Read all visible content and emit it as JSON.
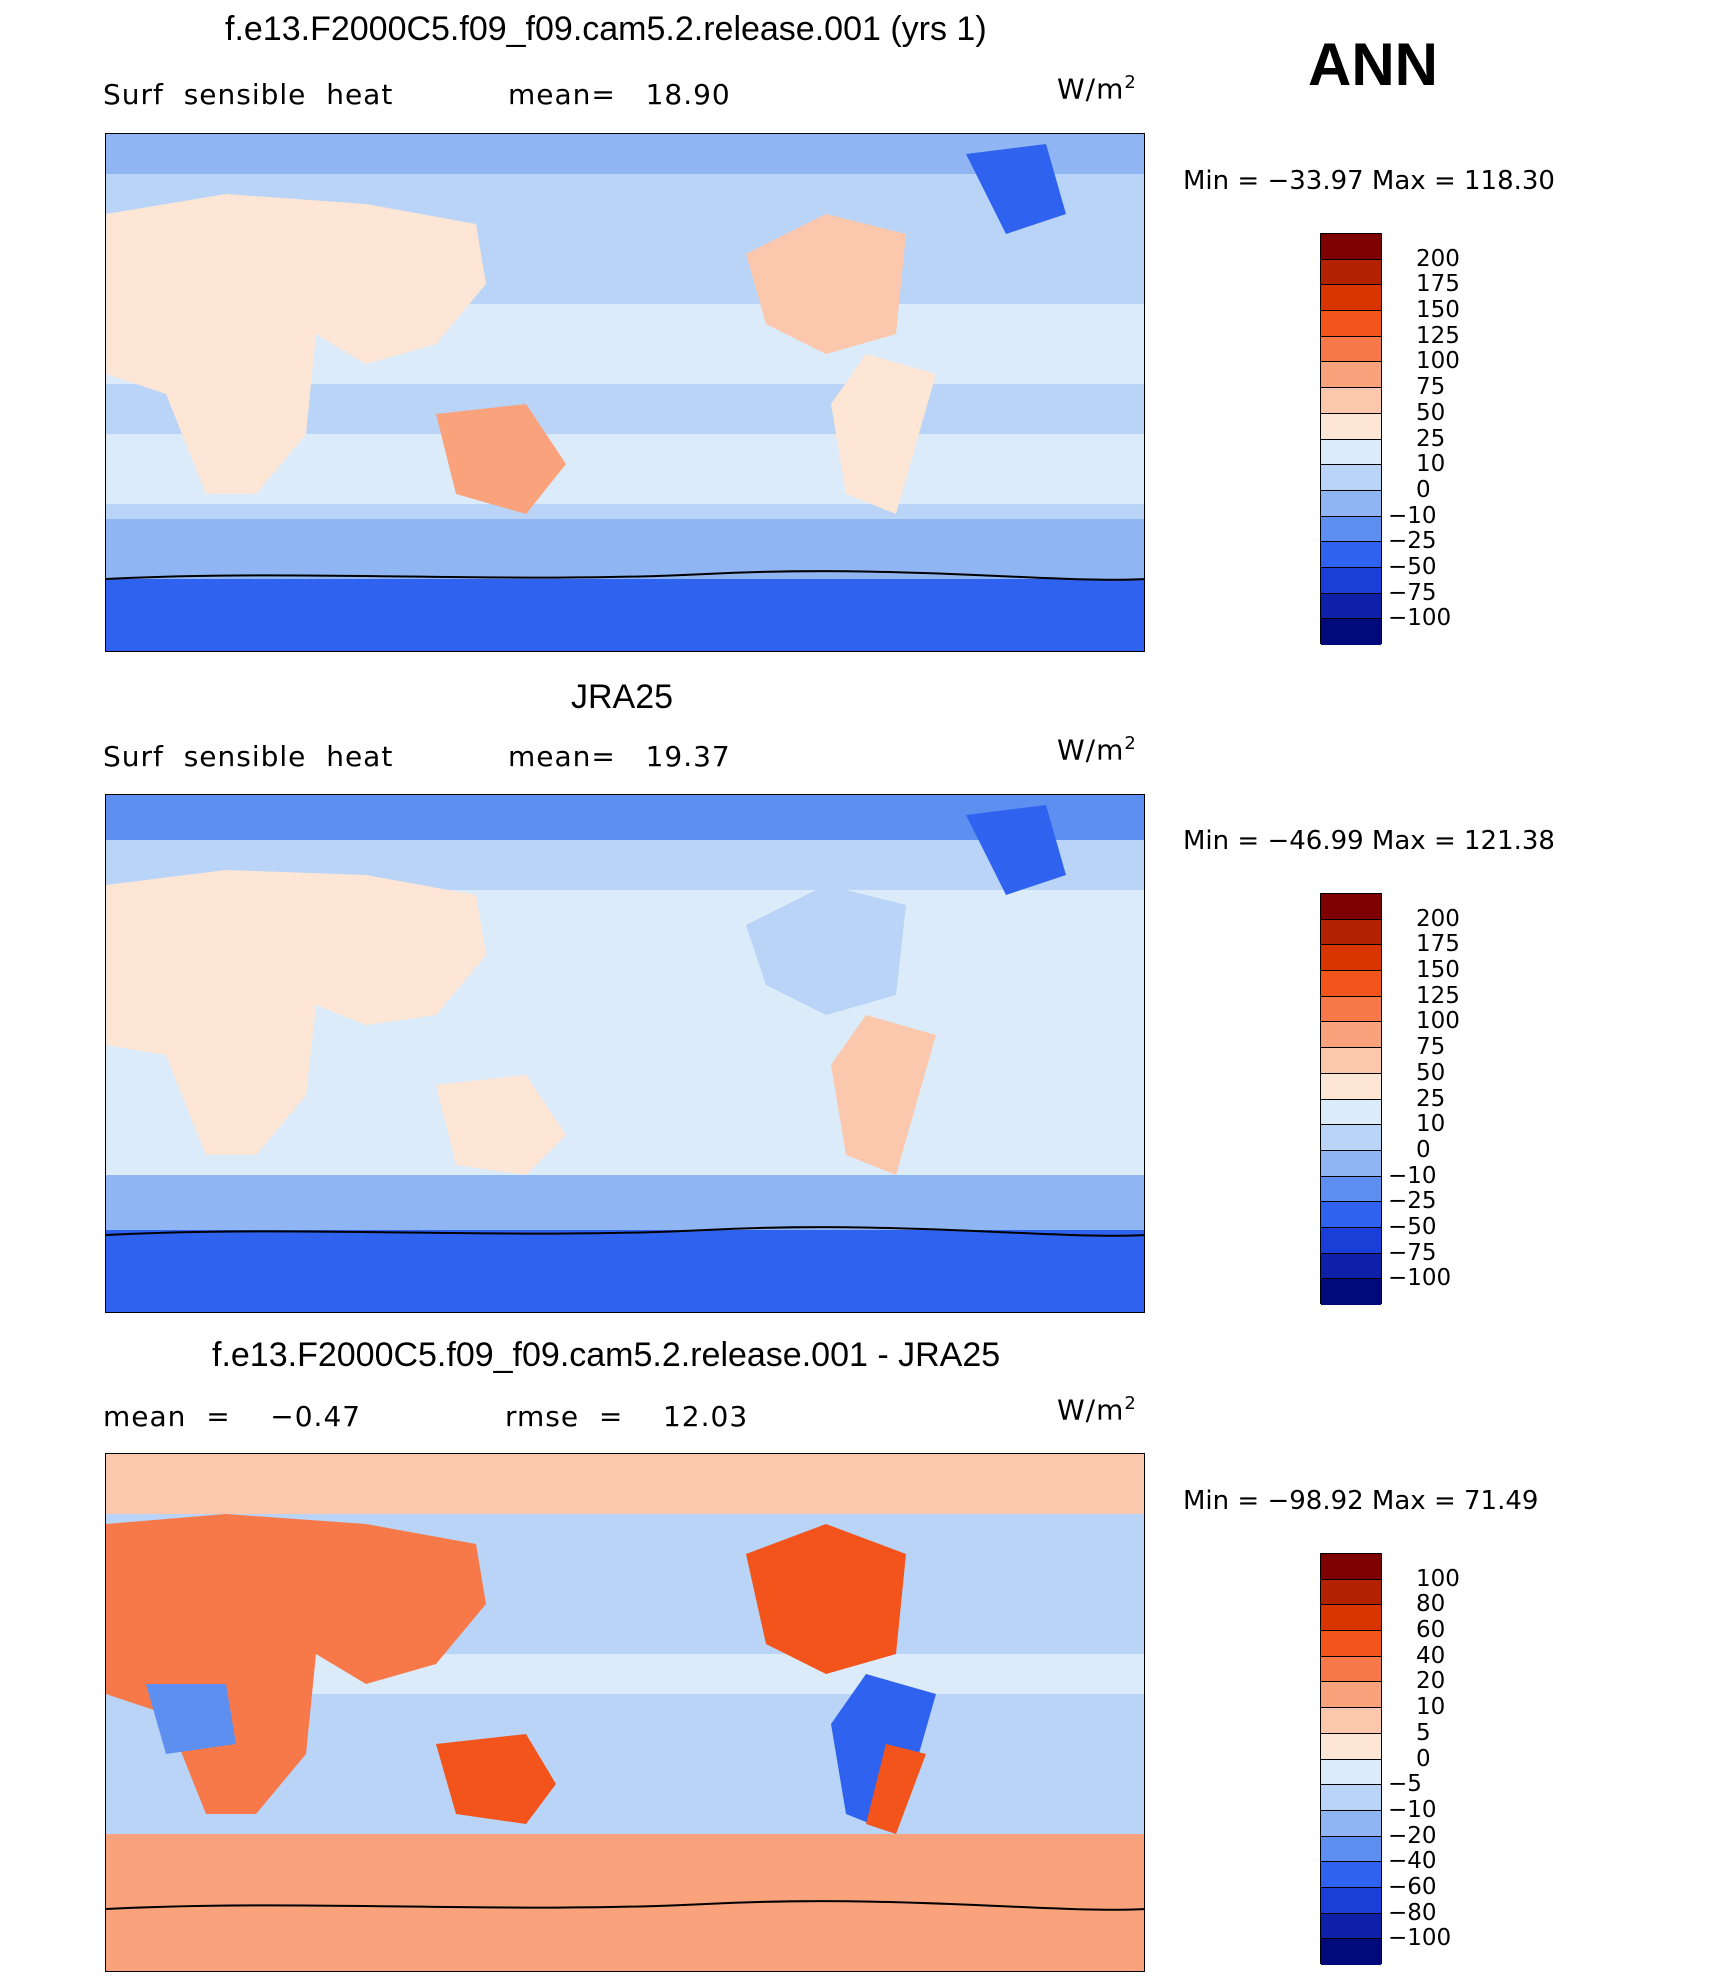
{
  "season": "ANN",
  "panels": [
    {
      "title": "f.e13.F2000C5.f09_f09.cam5.2.release.001 (yrs 1)",
      "left_label": "Surf  sensible  heat",
      "mid_label": "mean=   18.90",
      "units": "W/m",
      "units_sup": "2",
      "minmax": "Min  =  −33.97  Max  =  118.30",
      "colorbar_labels": [
        "200",
        "175",
        "150",
        "125",
        "100",
        "75",
        "50",
        "25",
        "10",
        "0",
        "−10",
        "−25",
        "−50",
        "−75",
        "−100"
      ],
      "colors": [
        "#7f0000",
        "#b32100",
        "#d93500",
        "#f2541b",
        "#f7794a",
        "#f9a27c",
        "#fbc8ae",
        "#fde6d5",
        "#dcebf9",
        "#b9d4f6",
        "#8fb6f2",
        "#5d8ff0",
        "#2f63ef",
        "#1a3fd8",
        "#0e1fa8",
        "#000a7a"
      ]
    },
    {
      "title": "JRA25",
      "left_label": "Surf  sensible  heat",
      "mid_label": "mean=   19.37",
      "units": "W/m",
      "units_sup": "2",
      "minmax": "Min  =  −46.99  Max  =  121.38",
      "colorbar_labels": [
        "200",
        "175",
        "150",
        "125",
        "100",
        "75",
        "50",
        "25",
        "10",
        "0",
        "−10",
        "−25",
        "−50",
        "−75",
        "−100"
      ],
      "colors": [
        "#7f0000",
        "#b32100",
        "#d93500",
        "#f2541b",
        "#f7794a",
        "#f9a27c",
        "#fbc8ae",
        "#fde6d5",
        "#dcebf9",
        "#b9d4f6",
        "#8fb6f2",
        "#5d8ff0",
        "#2f63ef",
        "#1a3fd8",
        "#0e1fa8",
        "#000a7a"
      ]
    },
    {
      "title": "f.e13.F2000C5.f09_f09.cam5.2.release.001 - JRA25",
      "left_label": "mean  =    −0.47",
      "mid_label": "rmse  =    12.03",
      "units": "W/m",
      "units_sup": "2",
      "minmax": "Min  =  −98.92  Max  =   71.49",
      "colorbar_labels": [
        "100",
        "80",
        "60",
        "40",
        "20",
        "10",
        "5",
        "0",
        "−5",
        "−10",
        "−20",
        "−40",
        "−60",
        "−80",
        "−100"
      ],
      "colors": [
        "#7f0000",
        "#b32100",
        "#d93500",
        "#f2541b",
        "#f7794a",
        "#f9a27c",
        "#fbc8ae",
        "#fde6d5",
        "#dcebf9",
        "#b9d4f6",
        "#8fb6f2",
        "#5d8ff0",
        "#2f63ef",
        "#1a3fd8",
        "#0e1fa8",
        "#000a7a"
      ]
    }
  ]
}
